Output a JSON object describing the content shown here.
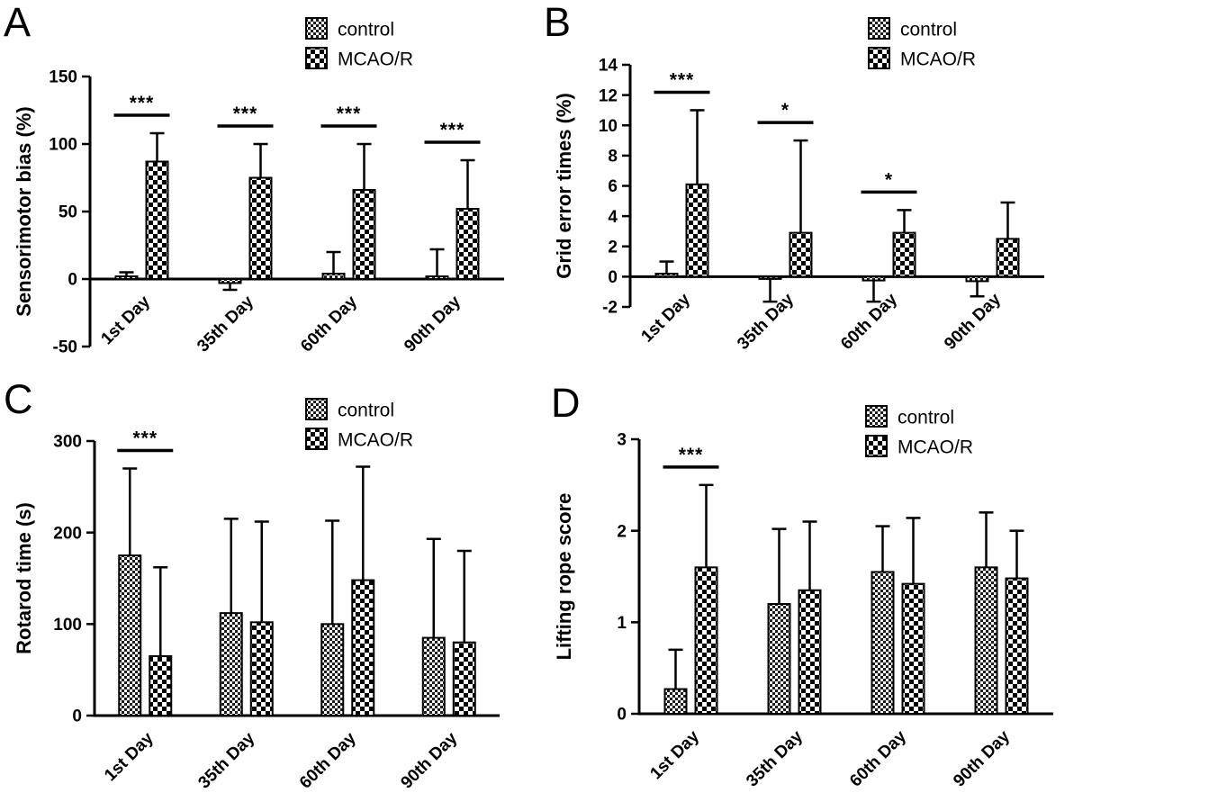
{
  "figure": {
    "type": "multi-panel-bar-figure",
    "background": "#ffffff",
    "ink": "#000000",
    "error_bars": "one-sided whiskers with caps"
  },
  "chart_data": [
    {
      "type": "bar",
      "panel": "A",
      "title": "",
      "xlabel": "",
      "ylabel": "Sensorimotor bias (%)",
      "ylim": [
        -50,
        150
      ],
      "yticks": [
        -50,
        0,
        50,
        100,
        150
      ],
      "categories": [
        "1st Day",
        "35th Day",
        "60th Day",
        "90th Day"
      ],
      "series": [
        {
          "name": "control",
          "fill_pattern": "fine-checker",
          "values": [
            2,
            -3,
            4,
            2
          ],
          "errors": [
            3,
            5,
            16,
            20
          ]
        },
        {
          "name": "MCAO/R",
          "fill_pattern": "checkerboard",
          "values": [
            87,
            75,
            66,
            52
          ],
          "errors": [
            21,
            25,
            34,
            36
          ]
        }
      ],
      "significance": [
        {
          "group": 0,
          "label": "***"
        },
        {
          "group": 1,
          "label": "***"
        },
        {
          "group": 2,
          "label": "***"
        },
        {
          "group": 3,
          "label": "***"
        }
      ],
      "legend_position": "top-right",
      "grid": false
    },
    {
      "type": "bar",
      "panel": "B",
      "title": "",
      "xlabel": "",
      "ylabel": "Grid error times (%)",
      "ylim": [
        -2,
        14
      ],
      "yticks": [
        -2,
        0,
        2,
        4,
        6,
        8,
        10,
        12,
        14
      ],
      "categories": [
        "1st Day",
        "35th Day",
        "60th Day",
        "90th Day"
      ],
      "series": [
        {
          "name": "control",
          "fill_pattern": "fine-checker",
          "values": [
            0.2,
            -0.15,
            -0.25,
            -0.3
          ],
          "errors": [
            0.8,
            1.5,
            1.4,
            1.0
          ]
        },
        {
          "name": "MCAO/R",
          "fill_pattern": "checkerboard",
          "values": [
            6.1,
            2.9,
            2.9,
            2.5
          ],
          "errors": [
            4.9,
            6.1,
            1.5,
            2.4
          ]
        }
      ],
      "significance": [
        {
          "group": 0,
          "label": "***"
        },
        {
          "group": 1,
          "label": "*"
        },
        {
          "group": 2,
          "label": "*"
        }
      ],
      "legend_position": "top-right",
      "grid": false
    },
    {
      "type": "bar",
      "panel": "C",
      "title": "",
      "xlabel": "",
      "ylabel": "Rotarod time (s)",
      "ylim": [
        0,
        300
      ],
      "yticks": [
        0,
        100,
        200,
        300
      ],
      "categories": [
        "1st Day",
        "35th Day",
        "60th Day",
        "90th Day"
      ],
      "series": [
        {
          "name": "control",
          "fill_pattern": "fine-checker",
          "values": [
            175,
            112,
            100,
            85
          ],
          "errors": [
            95,
            103,
            113,
            108
          ]
        },
        {
          "name": "MCAO/R",
          "fill_pattern": "checkerboard",
          "values": [
            65,
            102,
            148,
            80
          ],
          "errors": [
            97,
            110,
            124,
            100
          ]
        }
      ],
      "significance": [
        {
          "group": 0,
          "label": "***"
        }
      ],
      "legend_position": "top-right",
      "grid": false
    },
    {
      "type": "bar",
      "panel": "D",
      "title": "",
      "xlabel": "",
      "ylabel": "Lifting rope score",
      "ylim": [
        0,
        3
      ],
      "yticks": [
        0,
        1,
        2,
        3
      ],
      "categories": [
        "1st Day",
        "35th Day",
        "60th Day",
        "90th Day"
      ],
      "series": [
        {
          "name": "control",
          "fill_pattern": "fine-checker",
          "values": [
            0.27,
            1.2,
            1.55,
            1.6
          ],
          "errors": [
            0.43,
            0.82,
            0.5,
            0.6
          ]
        },
        {
          "name": "MCAO/R",
          "fill_pattern": "checkerboard",
          "values": [
            1.6,
            1.35,
            1.42,
            1.48
          ],
          "errors": [
            0.9,
            0.75,
            0.72,
            0.52
          ]
        }
      ],
      "significance": [
        {
          "group": 0,
          "label": "***"
        }
      ],
      "legend_position": "top-right",
      "grid": false
    }
  ]
}
